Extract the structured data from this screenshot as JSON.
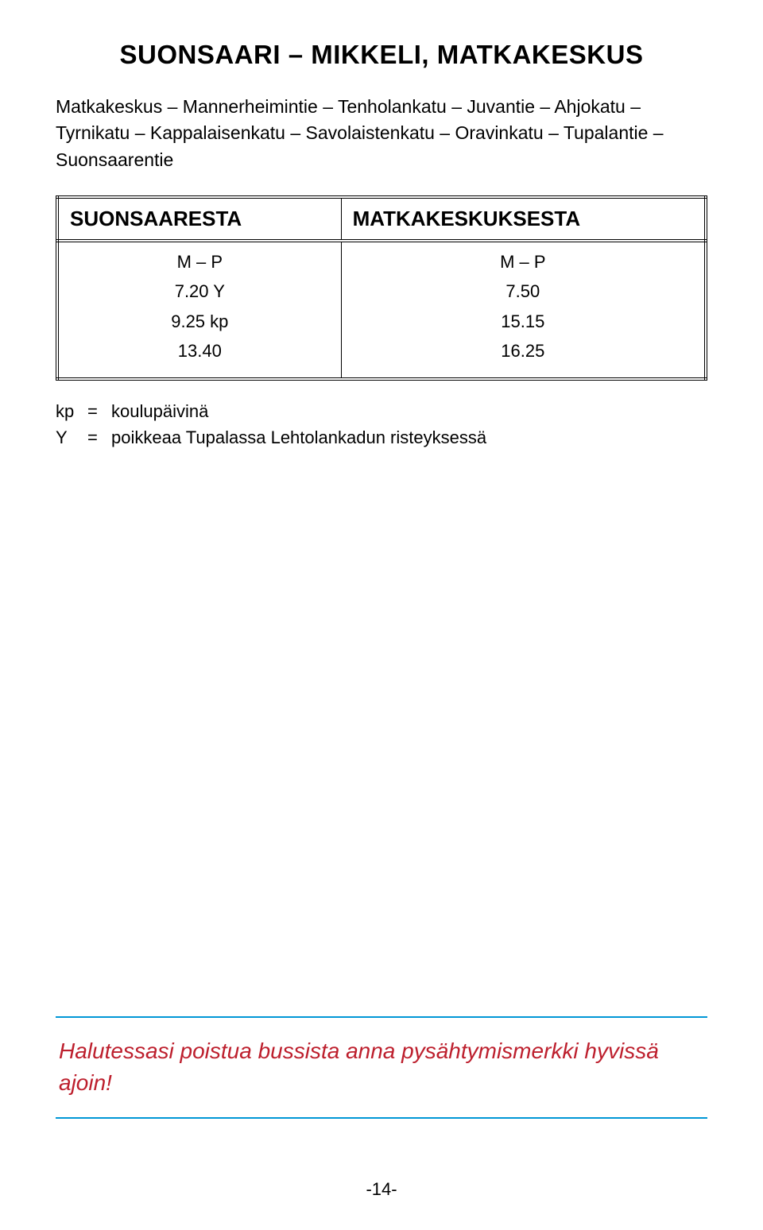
{
  "title": "SUONSAARI – MIKKELI, MATKAKESKUS",
  "route": "Matkakeskus – Mannerheimintie – Tenholankatu – Juvantie – Ahjokatu – Tyrnikatu – Kappalaisenkatu – Savolaistenkatu – Oravinkatu – Tupalantie – Suonsaarentie",
  "table": {
    "columns": [
      "SUONSAARESTA",
      "MATKAKESKUKSESTA"
    ],
    "subheaders": [
      "M – P",
      "M – P"
    ],
    "rows": [
      [
        "7.20 Y",
        "7.50"
      ],
      [
        "9.25 kp",
        "15.15"
      ],
      [
        "13.40",
        "16.25"
      ]
    ],
    "col_width_pct": [
      50,
      50
    ],
    "border_color": "#000000",
    "header_fontsize": 26,
    "cell_fontsize": 22
  },
  "legend": [
    {
      "key": "kp",
      "eq": "=",
      "desc": "koulupäivinä"
    },
    {
      "key": "Y",
      "eq": "=",
      "desc": "poikkeaa Tupalassa Lehtolankadun risteyksessä"
    }
  ],
  "notice": {
    "text": "Halutessasi poistua bussista anna pysähtymismerkki hyvissä ajoin!",
    "border_color": "#0097d6",
    "text_color": "#bd1f2d",
    "fontsize": 28
  },
  "page_number": "-14-",
  "colors": {
    "background": "#ffffff",
    "text": "#000000"
  }
}
